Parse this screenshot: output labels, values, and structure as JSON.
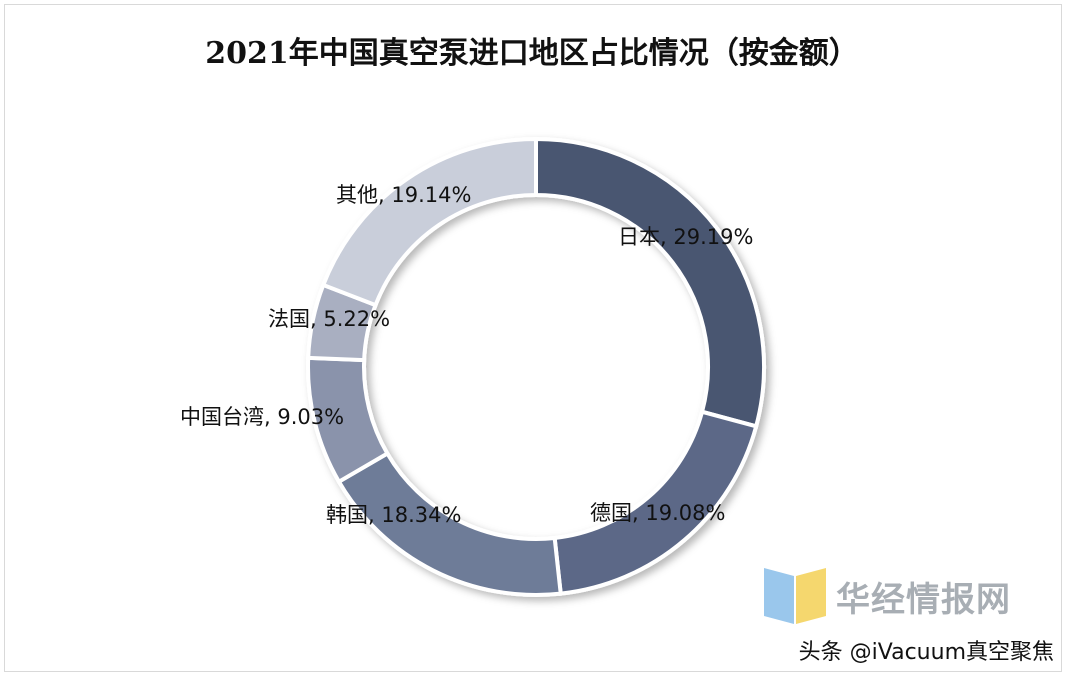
{
  "chart_data": {
    "type": "pie",
    "title": "2021年中国真空泵进口地区占比情况（按金额）",
    "slices": [
      {
        "label": "日本",
        "value": 29.19,
        "text": "日本, 29.19%",
        "color": "#4a5671"
      },
      {
        "label": "德国",
        "value": 19.08,
        "text": "德国, 19.08%",
        "color": "#5b6887"
      },
      {
        "label": "韩国",
        "value": 18.34,
        "text": "韩国, 18.34%",
        "color": "#6e7b98"
      },
      {
        "label": "中国台湾",
        "value": 9.03,
        "text": "中国台湾, 9.03%",
        "color": "#8a93ab"
      },
      {
        "label": "法国",
        "value": 5.22,
        "text": "法国, 5.22%",
        "color": "#a9afc1"
      },
      {
        "label": "其他",
        "value": 19.14,
        "text": "其他, 19.14%",
        "color": "#c9ceda"
      }
    ],
    "legend": "none"
  },
  "watermark": {
    "text": "华经情报网"
  },
  "footer": {
    "text": "头条 @iVacuum真空聚焦"
  }
}
